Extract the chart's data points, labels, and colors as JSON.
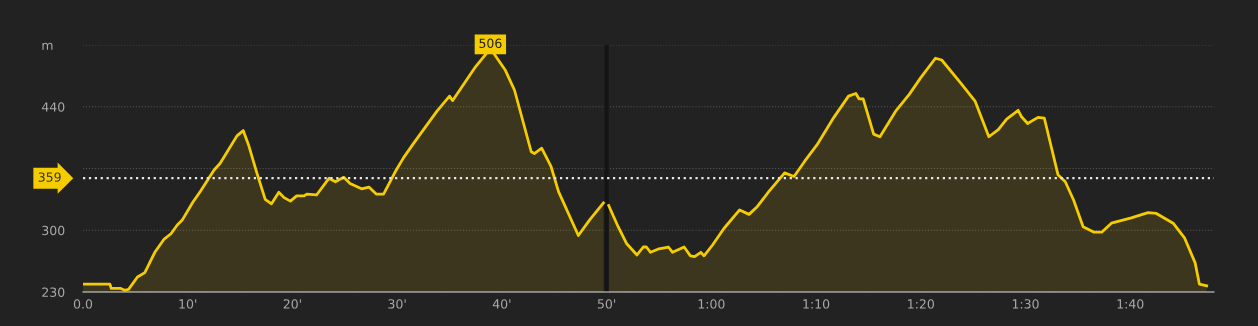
{
  "chart_data": {
    "type": "area",
    "x": [
      0,
      2.57,
      2.7,
      3.6,
      4.0,
      4.35,
      5.2,
      5.9,
      6.86,
      7.75,
      8.4,
      9.0,
      9.5,
      10.5,
      11.2,
      12.5,
      13.1,
      14.7,
      15.3,
      15.8,
      16.6,
      17.4,
      18.0,
      18.7,
      19.2,
      19.8,
      20.4,
      21.1,
      21.4,
      22.3,
      23.5,
      24.1,
      24.9,
      25.5,
      26.6,
      27.3,
      28.0,
      28.7,
      29.8,
      30.6,
      31.6,
      33.8,
      35.0,
      35.3,
      37.4,
      38.9,
      40.3,
      41.2,
      42.8,
      43.1,
      43.8,
      44.7,
      45.4,
      47.3,
      48.4,
      49.7,
      50.0,
      50.2,
      51.1,
      51.9,
      52.9,
      53.5,
      53.8,
      54.2,
      55.0,
      55.9,
      56.3,
      57.4,
      58.0,
      58.4,
      59.0,
      59.3,
      60.1,
      61.2,
      62.7,
      63.6,
      64.4,
      65.5,
      67.0,
      67.9,
      68.9,
      70.1,
      71.7,
      73.1,
      73.8,
      74.1,
      74.5,
      75.5,
      76.1,
      77.6,
      78.9,
      80.0,
      81.4,
      82.0,
      83.8,
      85.2,
      86.5,
      87.4,
      88.2,
      89.3,
      89.6,
      90.2,
      91.2,
      91.8,
      93.1,
      93.8,
      94.6,
      95.5,
      96.5,
      97.3,
      98.2,
      100.1,
      101.7,
      102.5,
      104.1,
      105.2,
      106.2,
      106.6,
      107.3
    ],
    "series": [
      {
        "color": "#f5cc00",
        "values": [
          239,
          239,
          234,
          234,
          232,
          233,
          247,
          252,
          275,
          290,
          296,
          306,
          312,
          332,
          344,
          368,
          376,
          407,
          413,
          397,
          365,
          335,
          330,
          343,
          337,
          333,
          339,
          339,
          341,
          340,
          359,
          355,
          360,
          353,
          347,
          349,
          341,
          341,
          366,
          382,
          399,
          435,
          452,
          447,
          484,
          506,
          482,
          459,
          389,
          387,
          393,
          372,
          344,
          294,
          312,
          331,
          null,
          328,
          304,
          285,
          272,
          281,
          281,
          275,
          279,
          281,
          275,
          281,
          271,
          270,
          275,
          271,
          283,
          302,
          323,
          318,
          327,
          344,
          365,
          361,
          378,
          397,
          428,
          452,
          455,
          449,
          449,
          409,
          406,
          435,
          454,
          473,
          495,
          493,
          467,
          446,
          406,
          414,
          426,
          436,
          429,
          421,
          428,
          427,
          363,
          355,
          334,
          304,
          298,
          298,
          308,
          314,
          320,
          319,
          308,
          291,
          263,
          239,
          237
        ]
      }
    ],
    "xlim": [
      0,
      108
    ],
    "xticks": [
      {
        "value": 0,
        "label": "0.0"
      },
      {
        "value": 10,
        "label": "10'"
      },
      {
        "value": 20,
        "label": "20'"
      },
      {
        "value": 30,
        "label": "30'"
      },
      {
        "value": 40,
        "label": "40'"
      },
      {
        "value": 50,
        "label": "50'"
      },
      {
        "value": 60,
        "label": "1:00"
      },
      {
        "value": 70,
        "label": "1:10"
      },
      {
        "value": 80,
        "label": "1:20"
      },
      {
        "value": 90,
        "label": "1:30"
      },
      {
        "value": 100,
        "label": "1:40"
      }
    ],
    "ylim": [
      230,
      510
    ],
    "yticks": [
      230,
      300,
      {
        "value": 370,
        "label": null
      },
      440,
      {
        "value": 510,
        "label": "m"
      }
    ],
    "grid": "y",
    "ref_lines": [
      {
        "axis": "y",
        "value": 359,
        "label": "359",
        "color": "#e8e8e8",
        "line_style": "dotted"
      }
    ],
    "bands": [
      {
        "axis": "x",
        "from": 49.8,
        "to": 50.2,
        "color": "#141414"
      }
    ],
    "annotations": [
      "506"
    ],
    "legend": false
  }
}
